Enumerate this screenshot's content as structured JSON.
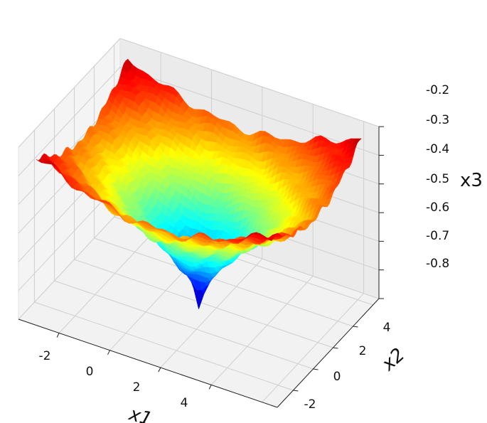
{
  "chart_data": {
    "type": "surface3d",
    "colormap": "jet",
    "title": "",
    "xlabel": "x1",
    "ylabel": "x2",
    "zlabel": "x3",
    "xlim": [
      -3.6,
      6.6
    ],
    "ylim": [
      -3.6,
      6.6
    ],
    "zlim": [
      -0.8,
      -0.2
    ],
    "x_ticks": [
      "-2",
      "0",
      "2",
      "4"
    ],
    "y_ticks": [
      "-2",
      "0",
      "2",
      "4"
    ],
    "z_ticks": [
      "-0.2",
      "-0.3",
      "-0.4",
      "-0.5",
      "-0.6",
      "-0.7",
      "-0.8"
    ],
    "surface": {
      "center": [
        1.5,
        1.5
      ],
      "min_value": -0.8,
      "corner_value": -0.2,
      "ripple": "small periodic bumps on a cone-shaped basin"
    },
    "grid": true
  }
}
